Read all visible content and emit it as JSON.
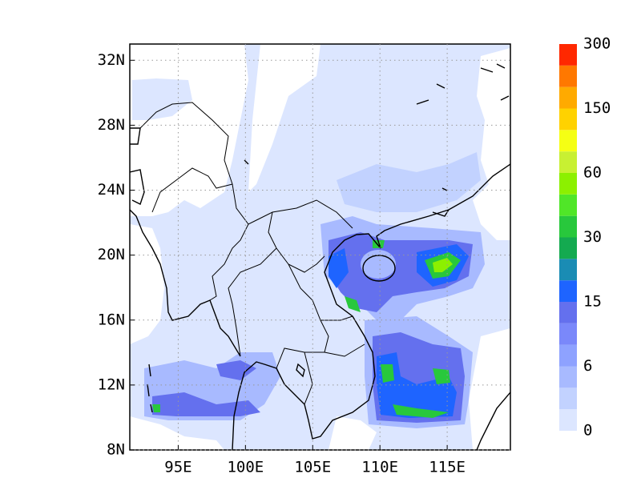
{
  "map": {
    "xlim": [
      91.4,
      119.7
    ],
    "ylim": [
      8,
      33
    ],
    "xticks": [
      {
        "value": 95,
        "label": "95E"
      },
      {
        "value": 100,
        "label": "100E"
      },
      {
        "value": 105,
        "label": "105E"
      },
      {
        "value": 110,
        "label": "110E"
      },
      {
        "value": 115,
        "label": "115E"
      }
    ],
    "yticks": [
      {
        "value": 8,
        "label": "8N"
      },
      {
        "value": 12,
        "label": "12N"
      },
      {
        "value": 16,
        "label": "16N"
      },
      {
        "value": 20,
        "label": "20N"
      },
      {
        "value": 24,
        "label": "24N"
      },
      {
        "value": 28,
        "label": "28N"
      },
      {
        "value": 32,
        "label": "32N"
      }
    ],
    "grid": true,
    "colorbar": {
      "colors": [
        "#dce6ff",
        "#c2d2ff",
        "#a8baff",
        "#8ea2ff",
        "#7a88fa",
        "#6470ee",
        "#1e64ff",
        "#1a8cb4",
        "#14aa50",
        "#28c83c",
        "#50e628",
        "#8cf000",
        "#c8f032",
        "#f5ff14",
        "#ffd200",
        "#ffaa00",
        "#ff7800",
        "#ff2800"
      ],
      "labels": [
        0,
        6,
        15,
        30,
        60,
        150,
        300
      ]
    }
  }
}
